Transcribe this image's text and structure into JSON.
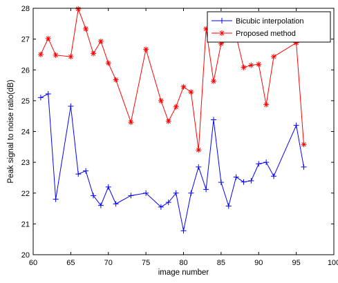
{
  "chart_data": {
    "type": "line",
    "title": "",
    "xlabel": "image number",
    "ylabel": "Peak signal to noise ratio(dB)",
    "xlim": [
      60,
      100
    ],
    "ylim": [
      20,
      28
    ],
    "xticks": [
      60,
      65,
      70,
      75,
      80,
      85,
      90,
      95,
      100
    ],
    "yticks": [
      20,
      21,
      22,
      23,
      24,
      25,
      26,
      27,
      28
    ],
    "grid": false,
    "legend_position": "top-right",
    "series": [
      {
        "name": "Bicubic interpolation",
        "color": "#0000ff",
        "marker": "plus",
        "points": [
          [
            61,
            25.1
          ],
          [
            62,
            25.22
          ],
          [
            63,
            21.8
          ],
          [
            65,
            24.82
          ],
          [
            66,
            22.62
          ],
          [
            67,
            22.72
          ],
          [
            68,
            21.92
          ],
          [
            69,
            21.6
          ],
          [
            70,
            22.2
          ],
          [
            71,
            21.65
          ],
          [
            73,
            21.92
          ],
          [
            75,
            22.0
          ],
          [
            77,
            21.55
          ],
          [
            78,
            21.7
          ],
          [
            79,
            22.0
          ],
          [
            80,
            20.78
          ],
          [
            81,
            22.0
          ],
          [
            82,
            22.85
          ],
          [
            83,
            22.12
          ],
          [
            84,
            24.38
          ],
          [
            85,
            22.35
          ],
          [
            86,
            21.58
          ],
          [
            87,
            22.52
          ],
          [
            88,
            22.36
          ],
          [
            89,
            22.4
          ],
          [
            90,
            22.95
          ],
          [
            91,
            23.0
          ],
          [
            92,
            22.55
          ],
          [
            95,
            24.2
          ],
          [
            96,
            22.85
          ]
        ]
      },
      {
        "name": "Proposed method",
        "color": "#ff0000",
        "marker": "asterisk",
        "points": [
          [
            61,
            26.5
          ],
          [
            62,
            27.02
          ],
          [
            63,
            26.48
          ],
          [
            65,
            26.43
          ],
          [
            66,
            27.98
          ],
          [
            67,
            27.33
          ],
          [
            68,
            26.53
          ],
          [
            69,
            26.93
          ],
          [
            70,
            26.22
          ],
          [
            71,
            25.68
          ],
          [
            73,
            24.3
          ],
          [
            75,
            26.67
          ],
          [
            77,
            25.0
          ],
          [
            78,
            24.33
          ],
          [
            79,
            24.8
          ],
          [
            80,
            25.45
          ],
          [
            81,
            25.28
          ],
          [
            82,
            23.4
          ],
          [
            83,
            27.33
          ],
          [
            84,
            25.63
          ],
          [
            85,
            26.85
          ],
          [
            87,
            27.1
          ],
          [
            88,
            26.08
          ],
          [
            89,
            26.15
          ],
          [
            90,
            26.18
          ],
          [
            91,
            24.87
          ],
          [
            92,
            26.43
          ],
          [
            95,
            26.88
          ],
          [
            96,
            23.58
          ]
        ]
      }
    ]
  }
}
